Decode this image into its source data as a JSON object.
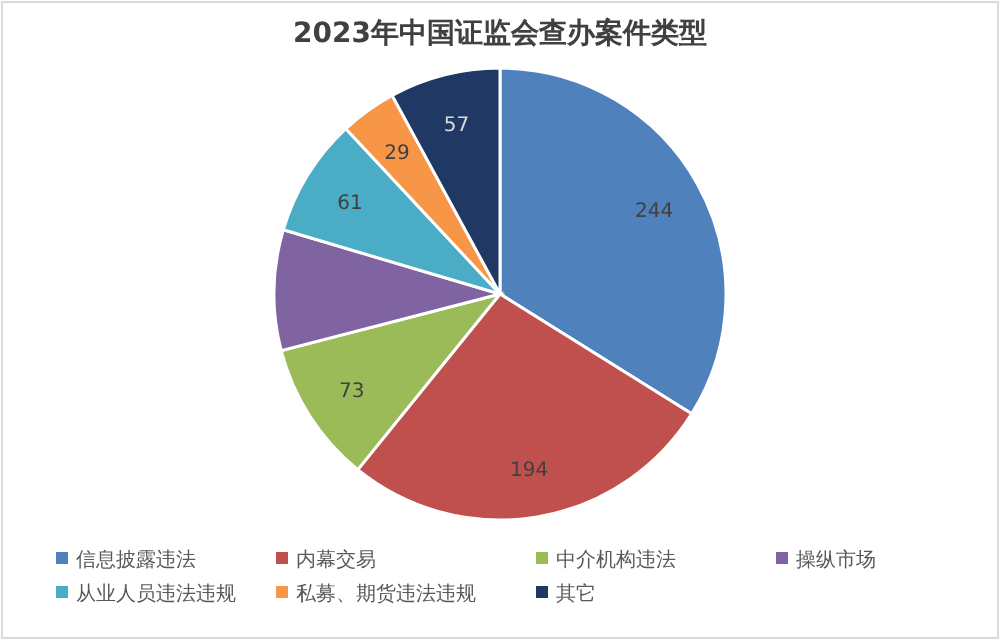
{
  "chart_data": {
    "type": "pie",
    "title": "2023年中国证监会查办案件类型",
    "categories": [
      "信息披露违法",
      "内幕交易",
      "中介机构违法",
      "操纵市场",
      "从业人员违法违规",
      "私募、期货违法违规",
      "其它"
    ],
    "values": [
      244,
      194,
      73,
      62,
      61,
      29,
      57
    ],
    "value_labels": [
      "244",
      "194",
      "73",
      null,
      "61",
      "29",
      "57"
    ],
    "colors": [
      "#4f81bd",
      "#c0504d",
      "#9bbb59",
      "#8064a2",
      "#4bacc6",
      "#f79646",
      "#1f3864"
    ],
    "legend": "bottom"
  }
}
